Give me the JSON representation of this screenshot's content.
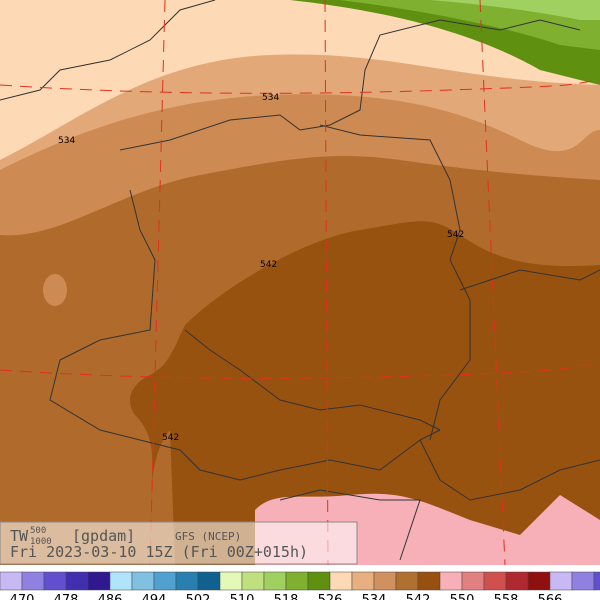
{
  "map": {
    "contour_labels": [
      "534",
      "534",
      "542",
      "542",
      "542"
    ]
  },
  "info": {
    "title": "TW",
    "sup": "500",
    "sub": "1000",
    "units": "[gpdam]",
    "model": "GFS (NCEP)",
    "time": "Fri 2023-03-10 15Z (Fri 00Z+015h)"
  },
  "colorbar": {
    "labels": [
      "470",
      "478",
      "486",
      "494",
      "502",
      "510",
      "518",
      "526",
      "534",
      "542",
      "550",
      "558",
      "566"
    ]
  }
}
